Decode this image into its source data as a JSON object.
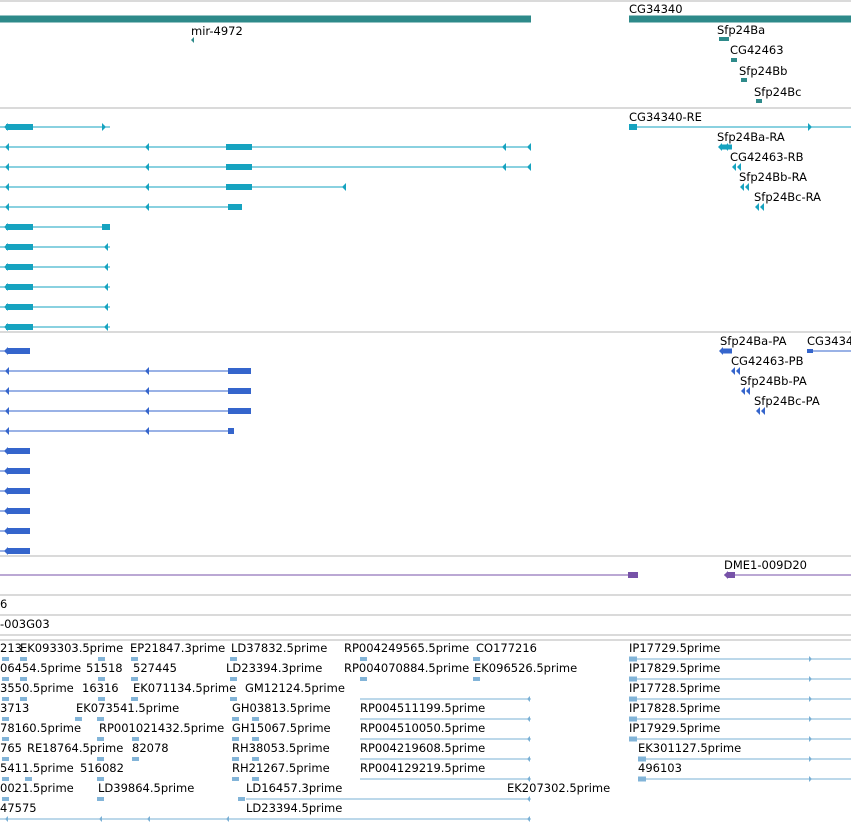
{
  "colors": {
    "gene": "#2e8a8a",
    "transcript": "#16a3c0",
    "protein": "#3565cc",
    "clone": "#7752a8",
    "est": "#82b4d8",
    "est_line": "#7ab0d5",
    "separator": "#b4b4b4"
  },
  "genes": [
    {
      "label": "CG34340"
    },
    {
      "label": "mir-4972"
    },
    {
      "label": "Sfp24Ba"
    },
    {
      "label": "CG42463"
    },
    {
      "label": "Sfp24Bb"
    },
    {
      "label": "Sfp24Bc"
    }
  ],
  "transcripts": [
    {
      "label": "CG34340-RE"
    },
    {
      "label": "Sfp24Ba-RA"
    },
    {
      "label": "CG42463-RB"
    },
    {
      "label": "Sfp24Bb-RA"
    },
    {
      "label": "Sfp24Bc-RA"
    }
  ],
  "proteins": [
    {
      "label": "Sfp24Ba-PA"
    },
    {
      "label": "CG3434"
    },
    {
      "label": "CG42463-PB"
    },
    {
      "label": "Sfp24Bb-PA"
    },
    {
      "label": "Sfp24Bc-PA"
    }
  ],
  "clones": [
    {
      "label": "DME1-009D20"
    }
  ],
  "misc_tracks": [
    {
      "label": "6"
    },
    {
      "label": "-003G03"
    }
  ],
  "ests": [
    {
      "label": "213"
    },
    {
      "label": "EK093303.5prime"
    },
    {
      "label": "EP21847.3prime"
    },
    {
      "label": "LD37832.5prime"
    },
    {
      "label": "RP004249565.5prime"
    },
    {
      "label": "CO177216"
    },
    {
      "label": "IP17729.5prime"
    },
    {
      "label": "06454.5prime"
    },
    {
      "label": "51518"
    },
    {
      "label": "527445"
    },
    {
      "label": "LD23394.3prime"
    },
    {
      "label": "RP004070884.5prime"
    },
    {
      "label": "EK096526.5prime"
    },
    {
      "label": "IP17829.5prime"
    },
    {
      "label": "3550.5prime"
    },
    {
      "label": "16316"
    },
    {
      "label": "EK071134.5prime"
    },
    {
      "label": "GM12124.5prime"
    },
    {
      "label": "IP17728.5prime"
    },
    {
      "label": "3713"
    },
    {
      "label": "EK073541.5prime"
    },
    {
      "label": "GH03813.5prime"
    },
    {
      "label": "RP004511199.5prime"
    },
    {
      "label": "IP17828.5prime"
    },
    {
      "label": "78160.5prime"
    },
    {
      "label": "RP001021432.5prime"
    },
    {
      "label": "GH15067.5prime"
    },
    {
      "label": "RP004510050.5prime"
    },
    {
      "label": "IP17929.5prime"
    },
    {
      "label": "765"
    },
    {
      "label": "RE18764.5prime"
    },
    {
      "label": "82078"
    },
    {
      "label": "RH38053.5prime"
    },
    {
      "label": "RP004219608.5prime"
    },
    {
      "label": "EK301127.5prime"
    },
    {
      "label": "5411.5prime"
    },
    {
      "label": "516082"
    },
    {
      "label": "RH21267.5prime"
    },
    {
      "label": "RP004129219.5prime"
    },
    {
      "label": "496103"
    },
    {
      "label": "0021.5prime"
    },
    {
      "label": "LD39864.5prime"
    },
    {
      "label": "LD16457.3prime"
    },
    {
      "label": "EK207302.5prime"
    },
    {
      "label": "47575"
    },
    {
      "label": "LD23394.5prime"
    }
  ]
}
